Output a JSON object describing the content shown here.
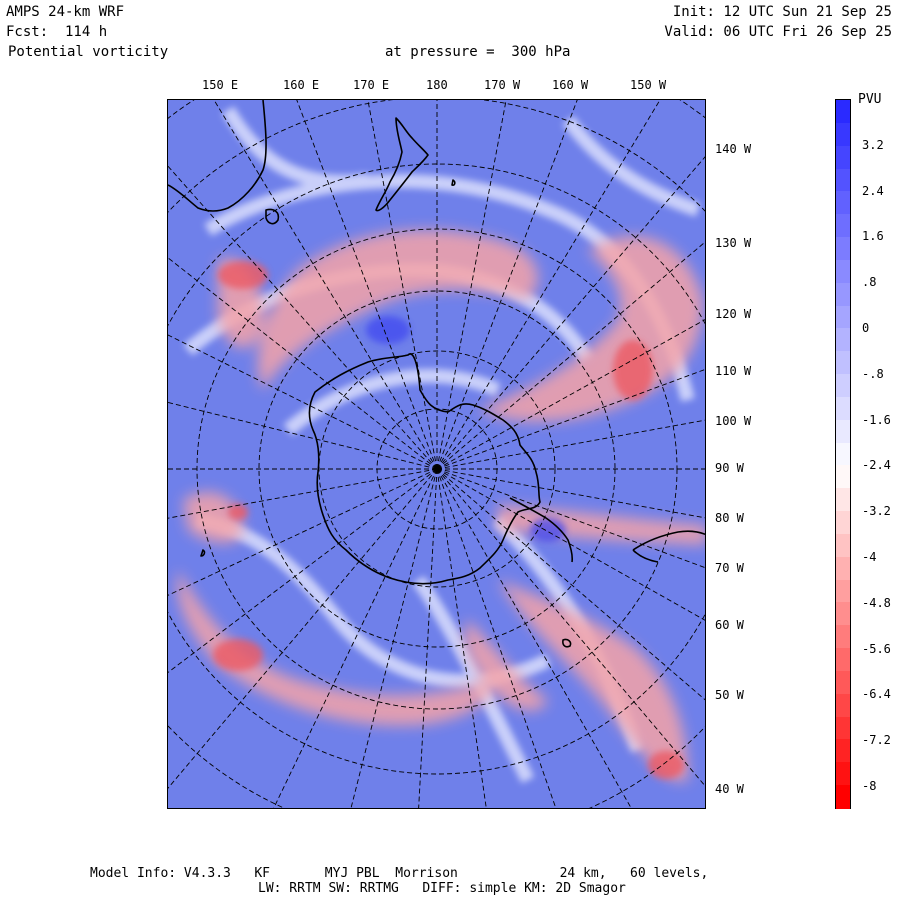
{
  "header": {
    "model": "AMPS 24-km WRF",
    "forecast": "Fcst:  114 h",
    "variable": "Potential vorticity",
    "level": "at pressure =  300 hPa",
    "init": "Init: 12 UTC Sun 21 Sep 25",
    "valid": "Valid: 06 UTC Fri 26 Sep 25"
  },
  "longitude_labels_top": [
    "150 E",
    "160 E",
    "170 E",
    "180",
    "170 W",
    "160 W",
    "150 W"
  ],
  "longitude_labels_right": [
    "140 W",
    "130 W",
    "120 W",
    "110 W",
    "100 W",
    "90 W",
    "80 W",
    "70 W",
    "60 W",
    "50 W",
    "40 W"
  ],
  "colorbar": {
    "title": "PVU",
    "ticks": [
      "3.2",
      "2.4",
      "1.6",
      ".8",
      "0",
      "-.8",
      "-1.6",
      "-2.4",
      "-3.2",
      "-4",
      "-4.8",
      "-5.6",
      "-6.4",
      "-7.2",
      "-8"
    ],
    "range": [
      -8.4,
      4.0
    ],
    "colors": {
      "positive": "#2a2aff",
      "neutral": "#ffffff",
      "negative": "#ff0000",
      "background_field": "#6f80ea",
      "coastline": "#000000"
    }
  },
  "footer": {
    "line1": "Model Info: V4.3.3   KF       MYJ PBL  Morrison             24 km,   60 levels,",
    "line2": "LW: RRTM SW: RRTMG   DIFF: simple KM: 2D Smagor"
  }
}
